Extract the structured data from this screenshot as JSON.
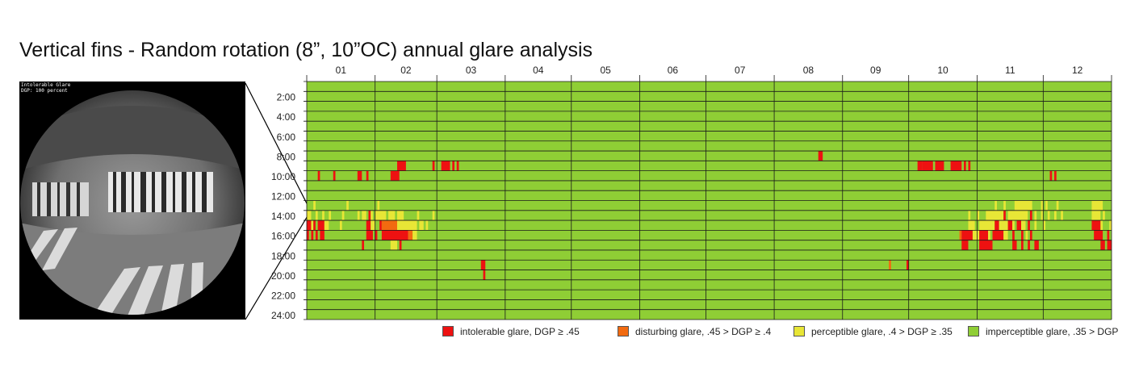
{
  "title": "Vertical fins - Random rotation (8”, 10”OC) annual glare analysis",
  "render": {
    "caption_line1": "Intolerable Glare",
    "caption_line2": "DGP: 100 percent"
  },
  "colors": {
    "intolerable": "#ee1111",
    "disturbing": "#f26a10",
    "perceptible": "#e8e636",
    "imperceptible": "#8fce35"
  },
  "chart_data": {
    "type": "heatmap",
    "title": "",
    "x_categories": [
      "01",
      "02",
      "03",
      "04",
      "05",
      "06",
      "07",
      "08",
      "09",
      "10",
      "11",
      "12"
    ],
    "y_categories": [
      "2:00",
      "4:00",
      "6:00",
      "8:00",
      "10:00",
      "12:00",
      "14:00",
      "16:00",
      "18:00",
      "20:00",
      "22:00",
      "24:00"
    ],
    "rows_hours": 24,
    "days": 365,
    "default_class": "imperceptible",
    "grid": true,
    "legend": [
      {
        "key": "intolerable",
        "label": "intolerable glare, DGP ≥ .45"
      },
      {
        "key": "disturbing",
        "label": "disturbing glare, .45 > DGP ≥ .4"
      },
      {
        "key": "perceptible",
        "label": "perceptible glare, .4 > DGP ≥ .35"
      },
      {
        "key": "imperceptible",
        "label": "imperceptible glare, .35 > DGP"
      }
    ],
    "events": [
      {
        "hour": 8,
        "day_start": 41,
        "day_end": 44,
        "class": "intolerable"
      },
      {
        "hour": 8,
        "day_start": 57,
        "day_end": 57,
        "class": "intolerable"
      },
      {
        "hour": 8,
        "day_start": 61,
        "day_end": 64,
        "class": "intolerable"
      },
      {
        "hour": 8,
        "day_start": 66,
        "day_end": 66,
        "class": "intolerable"
      },
      {
        "hour": 8,
        "day_start": 68,
        "day_end": 68,
        "class": "intolerable"
      },
      {
        "hour": 8,
        "day_start": 277,
        "day_end": 278,
        "class": "intolerable"
      },
      {
        "hour": 8,
        "day_start": 279,
        "day_end": 283,
        "class": "intolerable"
      },
      {
        "hour": 8,
        "day_start": 285,
        "day_end": 288,
        "class": "intolerable"
      },
      {
        "hour": 8,
        "day_start": 292,
        "day_end": 296,
        "class": "intolerable"
      },
      {
        "hour": 8,
        "day_start": 298,
        "day_end": 298,
        "class": "intolerable"
      },
      {
        "hour": 8,
        "day_start": 300,
        "day_end": 300,
        "class": "intolerable"
      },
      {
        "hour": 9,
        "day_start": 5,
        "day_end": 5,
        "class": "intolerable"
      },
      {
        "hour": 9,
        "day_start": 12,
        "day_end": 12,
        "class": "intolerable"
      },
      {
        "hour": 9,
        "day_start": 23,
        "day_end": 24,
        "class": "intolerable"
      },
      {
        "hour": 9,
        "day_start": 27,
        "day_end": 27,
        "class": "intolerable"
      },
      {
        "hour": 9,
        "day_start": 38,
        "day_end": 41,
        "class": "intolerable"
      },
      {
        "hour": 9,
        "day_start": 337,
        "day_end": 337,
        "class": "intolerable"
      },
      {
        "hour": 9,
        "day_start": 339,
        "day_end": 339,
        "class": "intolerable"
      },
      {
        "hour": 7,
        "day_start": 232,
        "day_end": 233,
        "class": "intolerable"
      },
      {
        "hour": 12,
        "day_start": 3,
        "day_end": 3,
        "class": "perceptible"
      },
      {
        "hour": 12,
        "day_start": 18,
        "day_end": 18,
        "class": "perceptible"
      },
      {
        "hour": 12,
        "day_start": 32,
        "day_end": 32,
        "class": "perceptible"
      },
      {
        "hour": 12,
        "day_start": 312,
        "day_end": 312,
        "class": "perceptible"
      },
      {
        "hour": 12,
        "day_start": 316,
        "day_end": 316,
        "class": "perceptible"
      },
      {
        "hour": 12,
        "day_start": 321,
        "day_end": 328,
        "class": "perceptible"
      },
      {
        "hour": 12,
        "day_start": 333,
        "day_end": 333,
        "class": "perceptible"
      },
      {
        "hour": 12,
        "day_start": 335,
        "day_end": 335,
        "class": "perceptible"
      },
      {
        "hour": 12,
        "day_start": 340,
        "day_end": 340,
        "class": "perceptible"
      },
      {
        "hour": 12,
        "day_start": 356,
        "day_end": 360,
        "class": "perceptible"
      },
      {
        "hour": 13,
        "day_start": 0,
        "day_end": 1,
        "class": "perceptible"
      },
      {
        "hour": 13,
        "day_start": 4,
        "day_end": 4,
        "class": "perceptible"
      },
      {
        "hour": 13,
        "day_start": 7,
        "day_end": 7,
        "class": "perceptible"
      },
      {
        "hour": 13,
        "day_start": 10,
        "day_end": 10,
        "class": "perceptible"
      },
      {
        "hour": 13,
        "day_start": 16,
        "day_end": 16,
        "class": "perceptible"
      },
      {
        "hour": 13,
        "day_start": 23,
        "day_end": 23,
        "class": "perceptible"
      },
      {
        "hour": 13,
        "day_start": 25,
        "day_end": 26,
        "class": "perceptible"
      },
      {
        "hour": 13,
        "day_start": 28,
        "day_end": 28,
        "class": "intolerable"
      },
      {
        "hour": 13,
        "day_start": 29,
        "day_end": 29,
        "class": "perceptible"
      },
      {
        "hour": 13,
        "day_start": 31,
        "day_end": 35,
        "class": "perceptible"
      },
      {
        "hour": 13,
        "day_start": 37,
        "day_end": 39,
        "class": "perceptible"
      },
      {
        "hour": 13,
        "day_start": 41,
        "day_end": 43,
        "class": "perceptible"
      },
      {
        "hour": 13,
        "day_start": 50,
        "day_end": 50,
        "class": "perceptible"
      },
      {
        "hour": 13,
        "day_start": 57,
        "day_end": 57,
        "class": "perceptible"
      },
      {
        "hour": 13,
        "day_start": 300,
        "day_end": 300,
        "class": "perceptible"
      },
      {
        "hour": 13,
        "day_start": 304,
        "day_end": 304,
        "class": "perceptible"
      },
      {
        "hour": 13,
        "day_start": 308,
        "day_end": 315,
        "class": "perceptible"
      },
      {
        "hour": 13,
        "day_start": 316,
        "day_end": 316,
        "class": "intolerable"
      },
      {
        "hour": 13,
        "day_start": 318,
        "day_end": 326,
        "class": "perceptible"
      },
      {
        "hour": 13,
        "day_start": 328,
        "day_end": 328,
        "class": "intolerable"
      },
      {
        "hour": 13,
        "day_start": 330,
        "day_end": 330,
        "class": "perceptible"
      },
      {
        "hour": 13,
        "day_start": 333,
        "day_end": 333,
        "class": "perceptible"
      },
      {
        "hour": 13,
        "day_start": 336,
        "day_end": 336,
        "class": "perceptible"
      },
      {
        "hour": 13,
        "day_start": 339,
        "day_end": 339,
        "class": "perceptible"
      },
      {
        "hour": 13,
        "day_start": 342,
        "day_end": 342,
        "class": "perceptible"
      },
      {
        "hour": 13,
        "day_start": 356,
        "day_end": 359,
        "class": "perceptible"
      },
      {
        "hour": 13,
        "day_start": 361,
        "day_end": 361,
        "class": "perceptible"
      },
      {
        "hour": 14,
        "day_start": 0,
        "day_end": 1,
        "class": "intolerable"
      },
      {
        "hour": 14,
        "day_start": 2,
        "day_end": 2,
        "class": "perceptible"
      },
      {
        "hour": 14,
        "day_start": 3,
        "day_end": 3,
        "class": "intolerable"
      },
      {
        "hour": 14,
        "day_start": 5,
        "day_end": 7,
        "class": "intolerable"
      },
      {
        "hour": 14,
        "day_start": 8,
        "day_end": 9,
        "class": "perceptible"
      },
      {
        "hour": 14,
        "day_start": 15,
        "day_end": 15,
        "class": "perceptible"
      },
      {
        "hour": 14,
        "day_start": 27,
        "day_end": 28,
        "class": "intolerable"
      },
      {
        "hour": 14,
        "day_start": 29,
        "day_end": 30,
        "class": "perceptible"
      },
      {
        "hour": 14,
        "day_start": 33,
        "day_end": 33,
        "class": "intolerable"
      },
      {
        "hour": 14,
        "day_start": 34,
        "day_end": 40,
        "class": "disturbing"
      },
      {
        "hour": 14,
        "day_start": 41,
        "day_end": 49,
        "class": "perceptible"
      },
      {
        "hour": 14,
        "day_start": 51,
        "day_end": 52,
        "class": "perceptible"
      },
      {
        "hour": 14,
        "day_start": 54,
        "day_end": 54,
        "class": "perceptible"
      },
      {
        "hour": 14,
        "day_start": 300,
        "day_end": 302,
        "class": "perceptible"
      },
      {
        "hour": 14,
        "day_start": 305,
        "day_end": 311,
        "class": "perceptible"
      },
      {
        "hour": 14,
        "day_start": 312,
        "day_end": 313,
        "class": "intolerable"
      },
      {
        "hour": 14,
        "day_start": 314,
        "day_end": 317,
        "class": "perceptible"
      },
      {
        "hour": 14,
        "day_start": 318,
        "day_end": 319,
        "class": "intolerable"
      },
      {
        "hour": 14,
        "day_start": 320,
        "day_end": 320,
        "class": "perceptible"
      },
      {
        "hour": 14,
        "day_start": 322,
        "day_end": 323,
        "class": "intolerable"
      },
      {
        "hour": 14,
        "day_start": 324,
        "day_end": 325,
        "class": "perceptible"
      },
      {
        "hour": 14,
        "day_start": 327,
        "day_end": 327,
        "class": "intolerable"
      },
      {
        "hour": 14,
        "day_start": 330,
        "day_end": 330,
        "class": "perceptible"
      },
      {
        "hour": 14,
        "day_start": 334,
        "day_end": 334,
        "class": "perceptible"
      },
      {
        "hour": 14,
        "day_start": 356,
        "day_end": 359,
        "class": "intolerable"
      },
      {
        "hour": 14,
        "day_start": 360,
        "day_end": 360,
        "class": "perceptible"
      },
      {
        "hour": 14,
        "day_start": 364,
        "day_end": 364,
        "class": "perceptible"
      },
      {
        "hour": 15,
        "day_start": 0,
        "day_end": 0,
        "class": "intolerable"
      },
      {
        "hour": 15,
        "day_start": 2,
        "day_end": 2,
        "class": "intolerable"
      },
      {
        "hour": 15,
        "day_start": 4,
        "day_end": 4,
        "class": "intolerable"
      },
      {
        "hour": 15,
        "day_start": 6,
        "day_end": 7,
        "class": "intolerable"
      },
      {
        "hour": 15,
        "day_start": 27,
        "day_end": 29,
        "class": "intolerable"
      },
      {
        "hour": 15,
        "day_start": 31,
        "day_end": 31,
        "class": "intolerable"
      },
      {
        "hour": 15,
        "day_start": 34,
        "day_end": 45,
        "class": "intolerable"
      },
      {
        "hour": 15,
        "day_start": 46,
        "day_end": 47,
        "class": "disturbing"
      },
      {
        "hour": 15,
        "day_start": 48,
        "day_end": 49,
        "class": "perceptible"
      },
      {
        "hour": 15,
        "day_start": 296,
        "day_end": 296,
        "class": "disturbing"
      },
      {
        "hour": 15,
        "day_start": 297,
        "day_end": 301,
        "class": "intolerable"
      },
      {
        "hour": 15,
        "day_start": 302,
        "day_end": 304,
        "class": "perceptible"
      },
      {
        "hour": 15,
        "day_start": 305,
        "day_end": 308,
        "class": "intolerable"
      },
      {
        "hour": 15,
        "day_start": 309,
        "day_end": 309,
        "class": "perceptible"
      },
      {
        "hour": 15,
        "day_start": 311,
        "day_end": 315,
        "class": "intolerable"
      },
      {
        "hour": 15,
        "day_start": 316,
        "day_end": 317,
        "class": "perceptible"
      },
      {
        "hour": 15,
        "day_start": 320,
        "day_end": 320,
        "class": "intolerable"
      },
      {
        "hour": 15,
        "day_start": 324,
        "day_end": 324,
        "class": "intolerable"
      },
      {
        "hour": 15,
        "day_start": 326,
        "day_end": 326,
        "class": "perceptible"
      },
      {
        "hour": 15,
        "day_start": 328,
        "day_end": 328,
        "class": "intolerable"
      },
      {
        "hour": 15,
        "day_start": 357,
        "day_end": 360,
        "class": "intolerable"
      },
      {
        "hour": 15,
        "day_start": 363,
        "day_end": 363,
        "class": "intolerable"
      },
      {
        "hour": 16,
        "day_start": 25,
        "day_end": 25,
        "class": "intolerable"
      },
      {
        "hour": 16,
        "day_start": 38,
        "day_end": 40,
        "class": "perceptible"
      },
      {
        "hour": 16,
        "day_start": 42,
        "day_end": 42,
        "class": "intolerable"
      },
      {
        "hour": 16,
        "day_start": 297,
        "day_end": 299,
        "class": "intolerable"
      },
      {
        "hour": 16,
        "day_start": 305,
        "day_end": 310,
        "class": "intolerable"
      },
      {
        "hour": 16,
        "day_start": 320,
        "day_end": 321,
        "class": "intolerable"
      },
      {
        "hour": 16,
        "day_start": 324,
        "day_end": 324,
        "class": "intolerable"
      },
      {
        "hour": 16,
        "day_start": 327,
        "day_end": 327,
        "class": "intolerable"
      },
      {
        "hour": 16,
        "day_start": 330,
        "day_end": 331,
        "class": "intolerable"
      },
      {
        "hour": 16,
        "day_start": 360,
        "day_end": 361,
        "class": "intolerable"
      },
      {
        "hour": 16,
        "day_start": 363,
        "day_end": 364,
        "class": "intolerable"
      },
      {
        "hour": 18,
        "day_start": 79,
        "day_end": 80,
        "class": "intolerable"
      },
      {
        "hour": 18,
        "day_start": 264,
        "day_end": 264,
        "class": "disturbing"
      },
      {
        "hour": 18,
        "day_start": 272,
        "day_end": 272,
        "class": "intolerable"
      },
      {
        "hour": 19,
        "day_start": 80,
        "day_end": 80,
        "class": "intolerable"
      }
    ]
  }
}
